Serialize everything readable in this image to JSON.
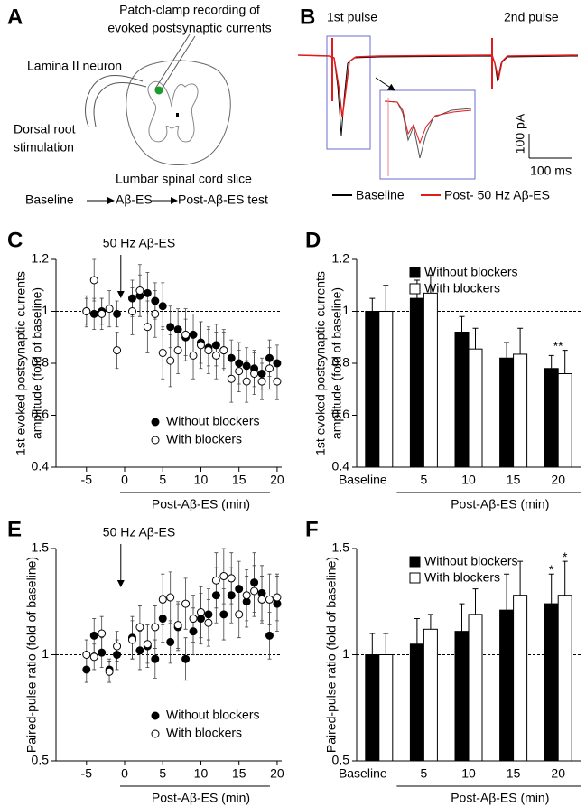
{
  "panel_a": {
    "label": "A",
    "recording": [
      "Patch-clamp recording of",
      "evoked postsynaptic currents"
    ],
    "neuron": "Lamina II neuron",
    "stimulation": [
      "Dorsal root",
      "stimulation"
    ],
    "slice": "Lumbar spinal cord slice",
    "protocol": [
      "Baseline",
      "Aβ-ES",
      "Post-Aβ-ES test"
    ]
  },
  "panel_b": {
    "label": "B",
    "pulses": [
      "1st pulse",
      "2nd pulse"
    ],
    "scale": [
      "100 pA",
      "100 ms"
    ],
    "legend": [
      "Baseline",
      "Post- 50 Hz Aβ-ES"
    ]
  },
  "chart_data": [
    {
      "type": "scatter",
      "panel": "C",
      "ylabel": [
        "1st evoked postsynaptic currents",
        "amplitude (fold of baseline)"
      ],
      "xlabel": "Post-Aβ-ES (min)",
      "annotation": {
        "text": "50 Hz Aβ-ES",
        "x": -0.5
      },
      "xlim": [
        -9,
        20.6
      ],
      "xticks": [
        -5,
        0,
        5,
        10,
        15,
        20
      ],
      "ylim": [
        0.4,
        1.2
      ],
      "yticks": [
        0.4,
        0.6,
        0.8,
        1,
        1.2
      ],
      "refline": 1,
      "legend": "lower right",
      "series": [
        {
          "name": "Without blockers",
          "color": "#000000",
          "x": [
            -5,
            -4,
            -3,
            -1,
            1,
            2,
            3,
            4,
            5,
            6,
            7,
            8,
            9,
            10,
            11,
            12,
            13,
            14,
            15,
            16,
            17,
            18,
            19,
            20
          ],
          "values": [
            1.0,
            0.99,
            1.0,
            0.99,
            1.05,
            1.06,
            1.07,
            1.04,
            1.02,
            0.94,
            0.93,
            0.9,
            0.91,
            0.88,
            0.86,
            0.87,
            0.85,
            0.82,
            0.8,
            0.79,
            0.78,
            0.76,
            0.82,
            0.8
          ],
          "errors": [
            0.05,
            0.06,
            0.05,
            0.05,
            0.07,
            0.08,
            0.08,
            0.07,
            0.09,
            0.08,
            0.08,
            0.07,
            0.08,
            0.08,
            0.07,
            0.08,
            0.07,
            0.07,
            0.08,
            0.07,
            0.07,
            0.06,
            0.07,
            0.07
          ]
        },
        {
          "name": "With blockers",
          "color": "#ffffff",
          "x": [
            -5,
            -4,
            -3,
            -2,
            -1,
            1,
            2,
            3,
            4,
            5,
            6,
            7,
            8,
            9,
            10,
            11,
            12,
            13,
            14,
            15,
            16,
            17,
            18,
            19,
            20
          ],
          "values": [
            1.0,
            1.12,
            0.99,
            1.01,
            0.85,
            1.0,
            1.08,
            0.94,
            0.99,
            0.84,
            0.81,
            0.85,
            0.91,
            0.83,
            0.87,
            0.85,
            0.83,
            0.85,
            0.74,
            0.77,
            0.73,
            0.76,
            0.73,
            0.78,
            0.73
          ],
          "errors": [
            0.06,
            0.08,
            0.06,
            0.07,
            0.07,
            0.09,
            0.1,
            0.1,
            0.09,
            0.1,
            0.1,
            0.09,
            0.1,
            0.09,
            0.09,
            0.09,
            0.09,
            0.08,
            0.09,
            0.08,
            0.08,
            0.08,
            0.07,
            0.08,
            0.07
          ]
        }
      ]
    },
    {
      "type": "bar",
      "panel": "D",
      "ylabel": [
        "1st evoked postsynaptic currents",
        "amplitude (fold of baseline)"
      ],
      "xlabel": "Post-Aβ-ES (min)",
      "categories": [
        "Baseline",
        "5",
        "10",
        "15",
        "20"
      ],
      "ylim": [
        0.4,
        1.2
      ],
      "yticks": [
        0.4,
        0.6,
        0.8,
        1,
        1.2
      ],
      "refline": 1,
      "legend": "upper right",
      "annotations": [
        {
          "text": "**",
          "category": "20"
        }
      ],
      "series": [
        {
          "name": "Without blockers",
          "color": "#000000",
          "values": [
            1.0,
            1.05,
            0.92,
            0.82,
            0.78
          ],
          "errors": [
            0.05,
            0.07,
            0.06,
            0.06,
            0.05
          ]
        },
        {
          "name": "With blockers",
          "color": "#ffffff",
          "values": [
            1.0,
            1.07,
            0.855,
            0.835,
            0.76
          ],
          "errors": [
            0.1,
            0.07,
            0.08,
            0.1,
            0.09
          ]
        }
      ]
    },
    {
      "type": "scatter",
      "panel": "E",
      "ylabel": [
        "Paired-pulse ratio (fold of baseline)"
      ],
      "xlabel": "Post-Aβ-ES (min)",
      "annotation": {
        "text": "50 Hz Aβ-ES",
        "x": -0.5
      },
      "xlim": [
        -9,
        20.6
      ],
      "xticks": [
        -5,
        0,
        5,
        10,
        15,
        20
      ],
      "ylim": [
        0.5,
        1.5
      ],
      "yticks": [
        0.5,
        1,
        1.5
      ],
      "refline": 1,
      "legend": "lower right",
      "series": [
        {
          "name": "Without blockers",
          "color": "#000000",
          "x": [
            -5,
            -4,
            -3,
            -2,
            -1,
            1,
            2,
            3,
            4,
            5,
            6,
            7,
            8,
            9,
            10,
            11,
            12,
            13,
            14,
            15,
            16,
            17,
            18,
            19,
            20
          ],
          "values": [
            0.93,
            1.09,
            1.01,
            0.93,
            1.0,
            1.08,
            1.02,
            1.04,
            0.98,
            1.17,
            1.06,
            1.13,
            0.98,
            1.11,
            1.17,
            1.19,
            1.28,
            1.19,
            1.28,
            1.31,
            1.25,
            1.34,
            1.29,
            1.09,
            1.24
          ],
          "errors": [
            0.06,
            0.08,
            0.07,
            0.05,
            0.07,
            0.1,
            0.09,
            0.1,
            0.09,
            0.11,
            0.1,
            0.11,
            0.1,
            0.11,
            0.12,
            0.12,
            0.13,
            0.12,
            0.13,
            0.13,
            0.12,
            0.14,
            0.13,
            0.11,
            0.13
          ]
        },
        {
          "name": "With blockers",
          "color": "#ffffff",
          "x": [
            -5,
            -4,
            -3,
            -2,
            -1,
            1,
            2,
            3,
            4,
            5,
            6,
            7,
            8,
            9,
            10,
            11,
            12,
            13,
            14,
            15,
            16,
            17,
            18,
            19,
            20
          ],
          "values": [
            1.0,
            0.99,
            1.1,
            0.92,
            1.04,
            1.07,
            1.13,
            1.05,
            1.13,
            1.26,
            1.27,
            1.14,
            1.24,
            1.17,
            1.2,
            1.15,
            1.35,
            1.37,
            1.36,
            1.19,
            1.28,
            1.3,
            1.26,
            1.26,
            1.27
          ],
          "errors": [
            0.07,
            0.06,
            0.08,
            0.05,
            0.07,
            0.09,
            0.1,
            0.09,
            0.1,
            0.12,
            0.12,
            0.11,
            0.12,
            0.11,
            0.12,
            0.11,
            0.13,
            0.13,
            0.12,
            0.11,
            0.12,
            0.12,
            0.11,
            0.12,
            0.11
          ]
        }
      ]
    },
    {
      "type": "bar",
      "panel": "F",
      "ylabel": [
        "Paired-pulse ratio (fold of baseline)"
      ],
      "xlabel": "Post-Aβ-ES (min)",
      "categories": [
        "Baseline",
        "5",
        "10",
        "15",
        "20"
      ],
      "ylim": [
        0.5,
        1.5
      ],
      "yticks": [
        0.5,
        1,
        1.5
      ],
      "refline": 1,
      "legend": "upper right",
      "annotations": [
        {
          "text": "*",
          "category": "20",
          "series": "Without blockers"
        },
        {
          "text": "*",
          "category": "20",
          "series": "With blockers"
        }
      ],
      "series": [
        {
          "name": "Without blockers",
          "color": "#000000",
          "values": [
            1.0,
            1.05,
            1.11,
            1.21,
            1.24
          ],
          "errors": [
            0.1,
            0.12,
            0.13,
            0.17,
            0.14
          ]
        },
        {
          "name": "With blockers",
          "color": "#ffffff",
          "values": [
            1.0,
            1.12,
            1.19,
            1.28,
            1.28
          ],
          "errors": [
            0.1,
            0.07,
            0.12,
            0.16,
            0.16
          ]
        }
      ]
    }
  ]
}
